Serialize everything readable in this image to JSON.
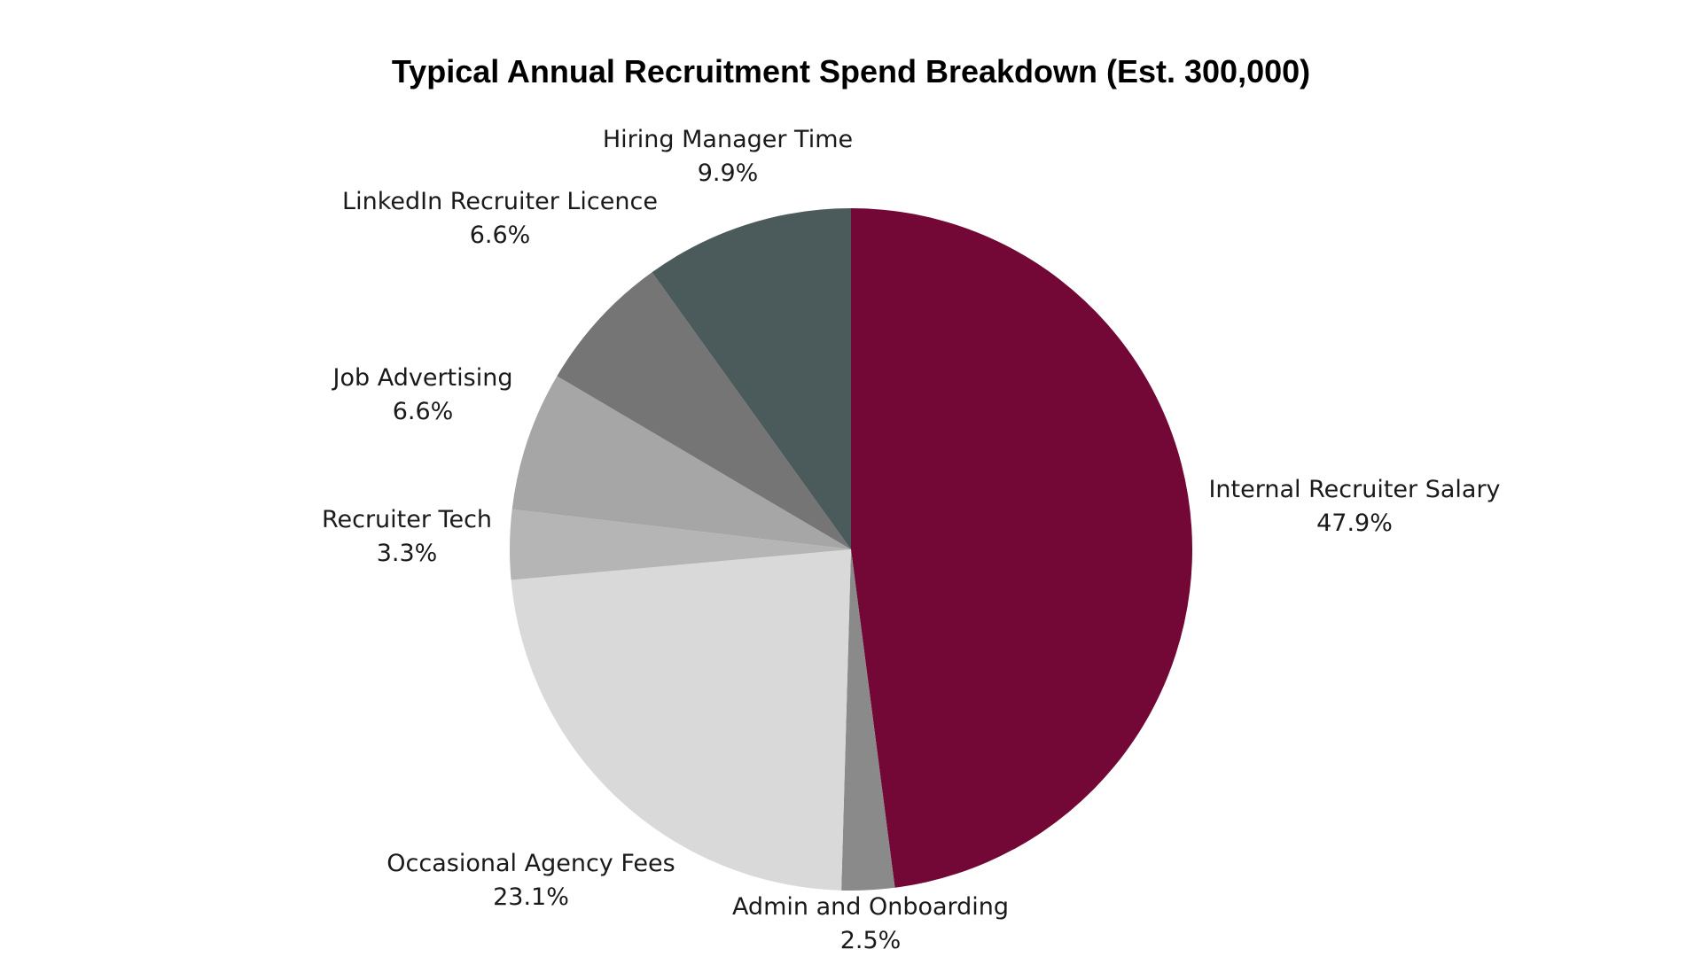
{
  "chart_data": {
    "type": "pie",
    "title": "Typical Annual Recruitment Spend Breakdown (Est. 300,000)",
    "start_angle_deg": 0,
    "direction": "clockwise",
    "slices": [
      {
        "label": "Internal Recruiter Salary",
        "value": 47.9,
        "display": "47.9%",
        "color": "#730735"
      },
      {
        "label": "Admin and Onboarding",
        "value": 2.5,
        "display": "2.5%",
        "color": "#8a8a8a"
      },
      {
        "label": "Occasional Agency Fees",
        "value": 23.1,
        "display": "23.1%",
        "color": "#d9d9d9"
      },
      {
        "label": "Recruiter Tech",
        "value": 3.3,
        "display": "3.3%",
        "color": "#b5b5b5"
      },
      {
        "label": "Job Advertising",
        "value": 6.6,
        "display": "6.6%",
        "color": "#a6a6a6"
      },
      {
        "label": "LinkedIn Recruiter Licence",
        "value": 6.6,
        "display": "6.6%",
        "color": "#757575"
      },
      {
        "label": "Hiring Manager Time",
        "value": 9.9,
        "display": "9.9%",
        "color": "#4b5a5a"
      }
    ]
  }
}
